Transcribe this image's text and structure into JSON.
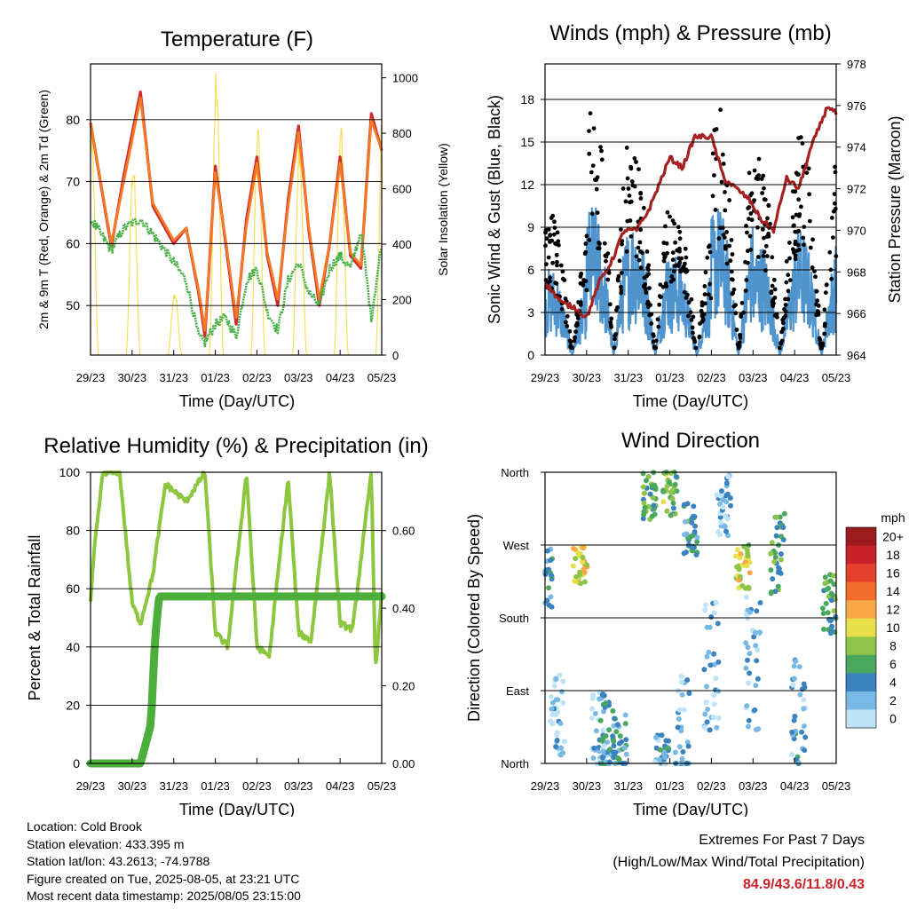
{
  "x_ticks": [
    "29/23",
    "30/23",
    "31/23",
    "01/23",
    "02/23",
    "03/23",
    "04/23",
    "05/23"
  ],
  "chart_data": [
    {
      "type": "line",
      "title": "Temperature (F)",
      "xlabel": "Time (Day/UTC)",
      "ylabel": "2m & 9m T (Red, Orange) & 2m Td (Green)",
      "ylabel_right": "Solar Insolation (Yellow)",
      "ylim": [
        42,
        89
      ],
      "yticks": [
        50,
        60,
        70,
        80
      ],
      "ylim_right": [
        0,
        1050
      ],
      "yticks_right": [
        0,
        200,
        400,
        600,
        800,
        1000
      ],
      "x": [
        0,
        0.5,
        0.8,
        1.2,
        1.5,
        2.0,
        2.3,
        2.6,
        2.75,
        3.0,
        3.25,
        3.5,
        3.75,
        4.0,
        4.25,
        4.5,
        4.75,
        5.0,
        5.25,
        5.5,
        5.75,
        6.0,
        6.25,
        6.5,
        6.75,
        7.0
      ],
      "series": [
        {
          "name": "2m T",
          "color": "#d12b2b",
          "values": [
            79.5,
            59.5,
            71,
            84.5,
            66,
            60,
            62.5,
            52,
            45,
            72.5,
            60,
            47,
            64,
            74,
            58,
            50,
            67,
            79,
            62,
            50,
            60,
            74,
            58,
            56,
            81,
            75
          ]
        },
        {
          "name": "9m T",
          "color": "#f47a25",
          "values": [
            79.5,
            60,
            70,
            83.5,
            66.5,
            60.5,
            62.5,
            52.5,
            46,
            71.5,
            60.5,
            48,
            63,
            73,
            58.5,
            51,
            66,
            78,
            62.5,
            51,
            60,
            73,
            58.5,
            56.5,
            80,
            75
          ]
        },
        {
          "name": "2m Td",
          "color": "#49b047",
          "values": [
            64,
            59,
            62.5,
            64,
            61.5,
            57,
            54,
            45,
            44,
            47,
            48,
            45,
            54,
            56,
            49,
            46,
            54,
            57,
            52,
            50,
            56,
            58,
            56,
            62,
            48,
            60
          ]
        },
        {
          "name": "Solar",
          "color": "#f7de5a",
          "axis": "right",
          "days_peak": [
            820,
            720,
            240,
            1030,
            860,
            800,
            860,
            920
          ]
        }
      ]
    },
    {
      "type": "scatter",
      "title": "Winds (mph) & Pressure (mb)",
      "xlabel": "Time (Day/UTC)",
      "ylabel": "Sonic Wind & Gust (Blue, Black)",
      "ylabel_right": "Station Pressure (Maroon)",
      "ylim": [
        0,
        20.5
      ],
      "yticks": [
        0,
        3,
        6,
        9,
        12,
        15,
        18
      ],
      "ylim_right": [
        964,
        978
      ],
      "yticks_right": [
        964,
        966,
        968,
        970,
        972,
        974,
        976,
        978
      ],
      "pressure": {
        "x": [
          0,
          0.2,
          0.4,
          0.7,
          1.0,
          1.3,
          1.6,
          1.9,
          2.2,
          2.5,
          2.8,
          3.0,
          3.3,
          3.6,
          4.0,
          4.3,
          4.6,
          4.9,
          5.2,
          5.5,
          5.8,
          6.1,
          6.4,
          6.8,
          7.0
        ],
        "values": [
          967.5,
          967,
          966.5,
          966.3,
          965.8,
          967.5,
          968.5,
          970,
          970,
          971,
          972.5,
          973.5,
          973,
          974.5,
          974.5,
          972.5,
          972,
          971.5,
          970.5,
          970,
          972.5,
          972,
          974,
          976,
          975.6
        ]
      },
      "wind_peaks": [
        7,
        12,
        11,
        8,
        12,
        9,
        10,
        11
      ],
      "gust_peaks": [
        10,
        18,
        14,
        10,
        18,
        14,
        16,
        13
      ],
      "series_colors": {
        "wind": "#4f94cd",
        "gust": "#000000",
        "pressure": "#a52020"
      }
    },
    {
      "type": "line",
      "title": "Relative Humidity (%) & Precipitation (in)",
      "xlabel": "Time (Day/UTC)",
      "ylabel": "Percent & Total Rainfall",
      "ylim": [
        0,
        100
      ],
      "yticks": [
        0,
        20,
        40,
        60,
        80,
        100
      ],
      "ylim_right": [
        0,
        0.75
      ],
      "yticks_right": [
        "0.00",
        "0.20",
        "0.40",
        "0.60"
      ],
      "rh": {
        "x": [
          0,
          0.1,
          0.3,
          0.7,
          1.0,
          1.2,
          1.5,
          1.8,
          2.3,
          2.75,
          3.0,
          3.3,
          3.75,
          4.0,
          4.3,
          4.75,
          5.0,
          5.3,
          5.75,
          6.0,
          6.3,
          6.75,
          6.85,
          7.0
        ],
        "values": [
          55,
          75,
          100,
          100,
          55,
          48,
          65,
          96,
          90,
          100,
          45,
          40,
          100,
          40,
          37,
          98,
          45,
          42,
          100,
          48,
          46,
          100,
          32,
          58
        ],
        "color": "#8dc63f"
      },
      "precip": {
        "x": [
          0,
          1.2,
          1.45,
          1.55,
          1.65,
          7.0
        ],
        "values": [
          0,
          0,
          0.1,
          0.32,
          0.43,
          0.43
        ],
        "color": "#4caf3c"
      }
    },
    {
      "type": "scatter",
      "title": "Wind Direction",
      "xlabel": "Time (Day/UTC)",
      "ylabel": "Direction (Colored By Speed)",
      "yticks": [
        "North",
        "East",
        "South",
        "West",
        "North"
      ],
      "colorbar": {
        "title": "mph",
        "labels": [
          "20+",
          "18",
          "16",
          "14",
          "12",
          "10",
          "8",
          "6",
          "4",
          "2",
          "0"
        ],
        "colors": [
          "#9b1b1e",
          "#c8232a",
          "#e2412b",
          "#f16b2c",
          "#f7a648",
          "#e8e04b",
          "#8ec449",
          "#4aa85e",
          "#3b83be",
          "#7ab9e6",
          "#bfe3f6"
        ]
      },
      "clusters": [
        {
          "day": 0.0,
          "dir": 225,
          "spread": 40,
          "speed": 4
        },
        {
          "day": 0.3,
          "dir": 60,
          "spread": 50,
          "speed": 1
        },
        {
          "day": 0.85,
          "dir": 245,
          "spread": 25,
          "speed": 10
        },
        {
          "day": 1.3,
          "dir": 40,
          "spread": 50,
          "speed": 1
        },
        {
          "day": 1.5,
          "dir": 30,
          "spread": 60,
          "speed": 4
        },
        {
          "day": 1.8,
          "dir": 20,
          "spread": 40,
          "speed": 4
        },
        {
          "day": 2.5,
          "dir": 330,
          "spread": 30,
          "speed": 6
        },
        {
          "day": 2.8,
          "dir": 15,
          "spread": 20,
          "speed": 3
        },
        {
          "day": 3.0,
          "dir": 335,
          "spread": 30,
          "speed": 7
        },
        {
          "day": 3.3,
          "dir": 40,
          "spread": 70,
          "speed": 2
        },
        {
          "day": 3.5,
          "dir": 290,
          "spread": 40,
          "speed": 5
        },
        {
          "day": 4.0,
          "dir": 120,
          "spread": 80,
          "speed": 2
        },
        {
          "day": 4.3,
          "dir": 320,
          "spread": 40,
          "speed": 2
        },
        {
          "day": 4.75,
          "dir": 245,
          "spread": 30,
          "speed": 9
        },
        {
          "day": 5.0,
          "dir": 120,
          "spread": 90,
          "speed": 2
        },
        {
          "day": 5.6,
          "dir": 260,
          "spread": 50,
          "speed": 6
        },
        {
          "day": 6.1,
          "dir": 60,
          "spread": 70,
          "speed": 3
        },
        {
          "day": 6.85,
          "dir": 195,
          "spread": 40,
          "speed": 6
        }
      ]
    }
  ],
  "footer": {
    "location": "Location: Cold Brook",
    "elevation": "Station elevation: 433.395 m",
    "latlon": "Station lat/lon: 43.2613; -74.9788",
    "created": "Figure created on Tue, 2025-08-05, at 23:21 UTC",
    "recent": "Most recent data timestamp: 2025/08/05 23:15:00"
  },
  "extremes": {
    "title": "Extremes For Past 7 Days",
    "subtitle": "(High/Low/Max Wind/Total Precipitation)",
    "values": "84.9/43.6/11.8/0.43"
  }
}
